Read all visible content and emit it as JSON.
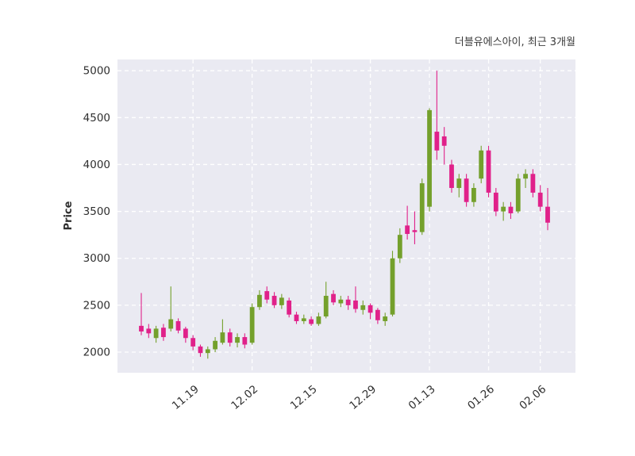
{
  "chart_data": {
    "type": "candlestick",
    "title": "더블유에스아이, 최근 3개월",
    "ylabel": "Price",
    "xlabel": "",
    "ylim": [
      1780,
      5120
    ],
    "yticks": [
      2000,
      2500,
      3000,
      3500,
      4000,
      4500,
      5000
    ],
    "xticks": [
      {
        "label": "11.19",
        "index": 7
      },
      {
        "label": "12.02",
        "index": 15
      },
      {
        "label": "12.15",
        "index": 23
      },
      {
        "label": "12.29",
        "index": 31
      },
      {
        "label": "01.13",
        "index": 39
      },
      {
        "label": "01.26",
        "index": 47
      },
      {
        "label": "02.06",
        "index": 54
      }
    ],
    "legend_position": "none",
    "grid": true,
    "colors": {
      "up": "#74a02c",
      "down": "#e0218a",
      "plot_background": "#eaeaf2",
      "gridline": "#ffffff",
      "tick_text": "#2f2f2f"
    },
    "candles_format": "open,high,low,close",
    "candles": [
      [
        2280,
        2630,
        2180,
        2220
      ],
      [
        2250,
        2300,
        2150,
        2200
      ],
      [
        2150,
        2280,
        2100,
        2250
      ],
      [
        2260,
        2300,
        2120,
        2160
      ],
      [
        2250,
        2700,
        2220,
        2350
      ],
      [
        2330,
        2360,
        2200,
        2230
      ],
      [
        2250,
        2270,
        2100,
        2150
      ],
      [
        2150,
        2180,
        2020,
        2060
      ],
      [
        2060,
        2080,
        1950,
        1990
      ],
      [
        1990,
        2060,
        1930,
        2030
      ],
      [
        2030,
        2160,
        2000,
        2120
      ],
      [
        2100,
        2350,
        2080,
        2210
      ],
      [
        2210,
        2250,
        2060,
        2100
      ],
      [
        2100,
        2200,
        2050,
        2160
      ],
      [
        2160,
        2200,
        2040,
        2080
      ],
      [
        2100,
        2520,
        2080,
        2480
      ],
      [
        2480,
        2660,
        2450,
        2610
      ],
      [
        2650,
        2700,
        2520,
        2560
      ],
      [
        2600,
        2640,
        2470,
        2500
      ],
      [
        2500,
        2620,
        2460,
        2580
      ],
      [
        2550,
        2580,
        2370,
        2400
      ],
      [
        2400,
        2430,
        2300,
        2330
      ],
      [
        2330,
        2400,
        2300,
        2360
      ],
      [
        2350,
        2380,
        2280,
        2300
      ],
      [
        2300,
        2420,
        2280,
        2380
      ],
      [
        2380,
        2750,
        2360,
        2600
      ],
      [
        2620,
        2660,
        2500,
        2530
      ],
      [
        2520,
        2600,
        2480,
        2560
      ],
      [
        2560,
        2600,
        2450,
        2500
      ],
      [
        2550,
        2700,
        2420,
        2460
      ],
      [
        2450,
        2550,
        2400,
        2500
      ],
      [
        2500,
        2520,
        2350,
        2420
      ],
      [
        2450,
        2470,
        2300,
        2340
      ],
      [
        2330,
        2420,
        2280,
        2380
      ],
      [
        2400,
        3080,
        2380,
        3000
      ],
      [
        3000,
        3320,
        2950,
        3250
      ],
      [
        3350,
        3560,
        3200,
        3260
      ],
      [
        3300,
        3500,
        3150,
        3280
      ],
      [
        3280,
        3850,
        3250,
        3800
      ],
      [
        3550,
        4600,
        3500,
        4580
      ],
      [
        4350,
        5000,
        4050,
        4150
      ],
      [
        4300,
        4400,
        4000,
        4200
      ],
      [
        4000,
        4050,
        3700,
        3750
      ],
      [
        3750,
        3900,
        3650,
        3850
      ],
      [
        3850,
        3900,
        3550,
        3600
      ],
      [
        3600,
        3800,
        3550,
        3750
      ],
      [
        3850,
        4200,
        3800,
        4150
      ],
      [
        4150,
        4200,
        3650,
        3700
      ],
      [
        3700,
        3750,
        3450,
        3500
      ],
      [
        3500,
        3600,
        3400,
        3550
      ],
      [
        3550,
        3600,
        3420,
        3480
      ],
      [
        3500,
        3900,
        3480,
        3850
      ],
      [
        3850,
        3950,
        3750,
        3900
      ],
      [
        3900,
        3950,
        3650,
        3700
      ],
      [
        3700,
        3780,
        3500,
        3550
      ],
      [
        3550,
        3750,
        3300,
        3380
      ]
    ]
  }
}
